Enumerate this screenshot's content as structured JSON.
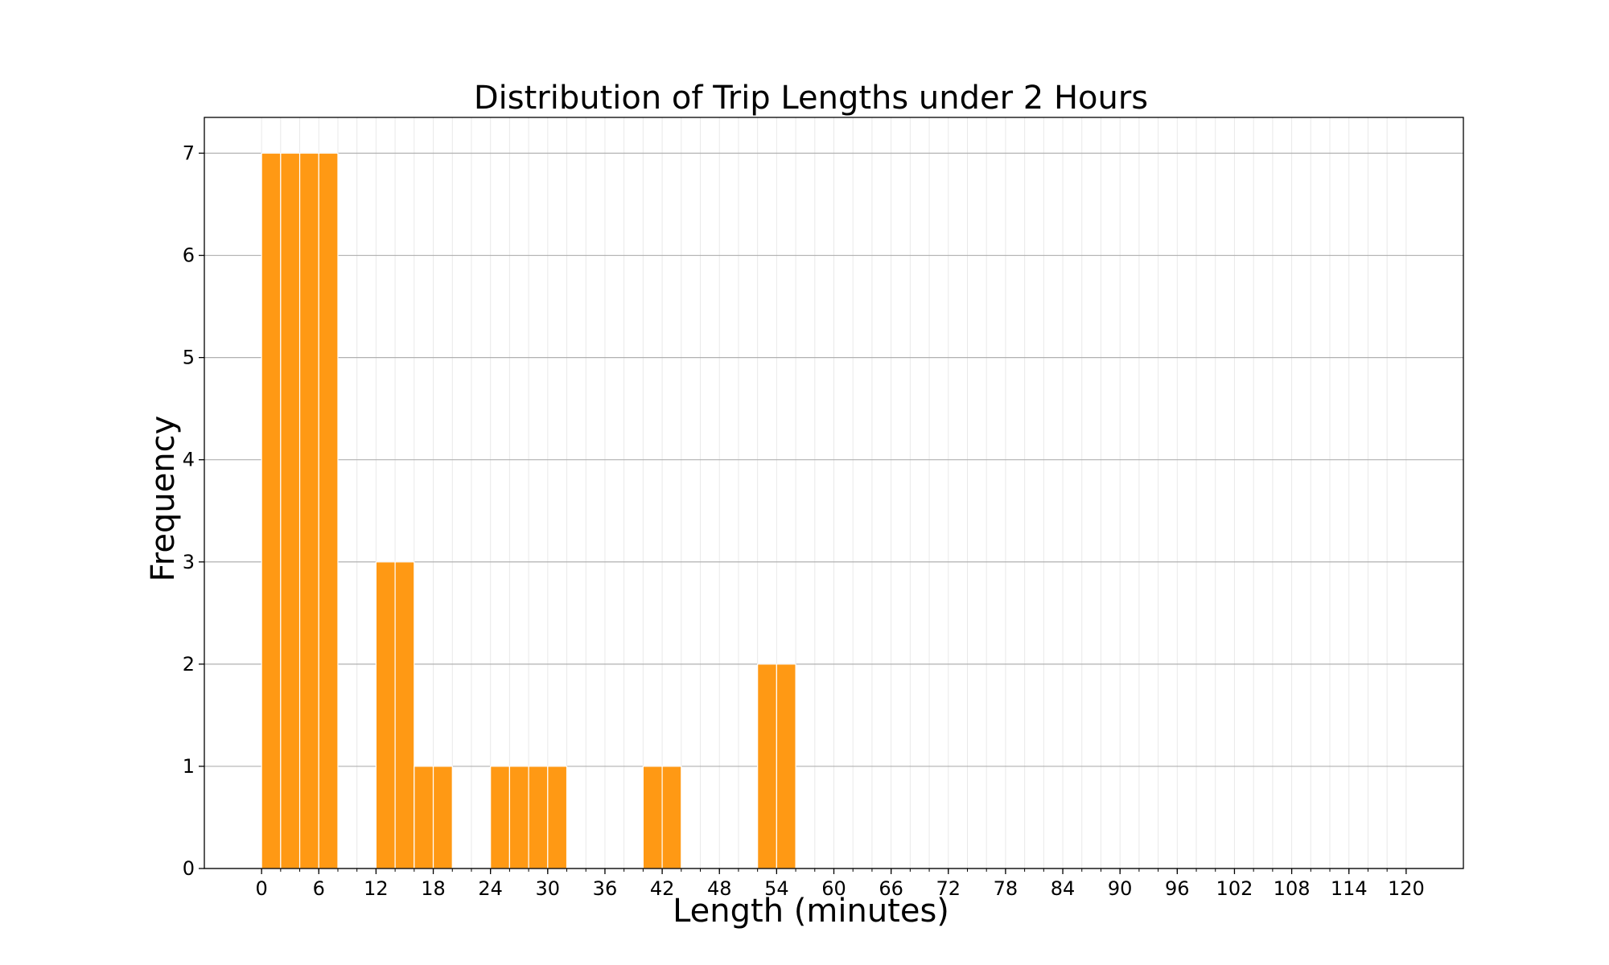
{
  "chart_data": {
    "type": "bar",
    "title": "Distribution of Trip Lengths under 2 Hours",
    "xlabel": "Length (minutes)",
    "ylabel": "Frequency",
    "bin_width": 2,
    "xlim": [
      -6,
      126
    ],
    "ylim": [
      0,
      7.35
    ],
    "xticks": [
      0,
      6,
      12,
      18,
      24,
      30,
      36,
      42,
      48,
      54,
      60,
      66,
      72,
      78,
      84,
      90,
      96,
      102,
      108,
      114,
      120
    ],
    "yticks": [
      0,
      1,
      2,
      3,
      4,
      5,
      6,
      7
    ],
    "bins": [
      {
        "x": 0,
        "value": 7
      },
      {
        "x": 2,
        "value": 7
      },
      {
        "x": 4,
        "value": 7
      },
      {
        "x": 6,
        "value": 7
      },
      {
        "x": 12,
        "value": 3
      },
      {
        "x": 14,
        "value": 3
      },
      {
        "x": 16,
        "value": 1
      },
      {
        "x": 18,
        "value": 1
      },
      {
        "x": 24,
        "value": 1
      },
      {
        "x": 26,
        "value": 1
      },
      {
        "x": 28,
        "value": 1
      },
      {
        "x": 30,
        "value": 1
      },
      {
        "x": 40,
        "value": 1
      },
      {
        "x": 42,
        "value": 1
      },
      {
        "x": 52,
        "value": 2
      },
      {
        "x": 54,
        "value": 2
      }
    ],
    "grid": true,
    "bar_color": "#ff9914"
  }
}
